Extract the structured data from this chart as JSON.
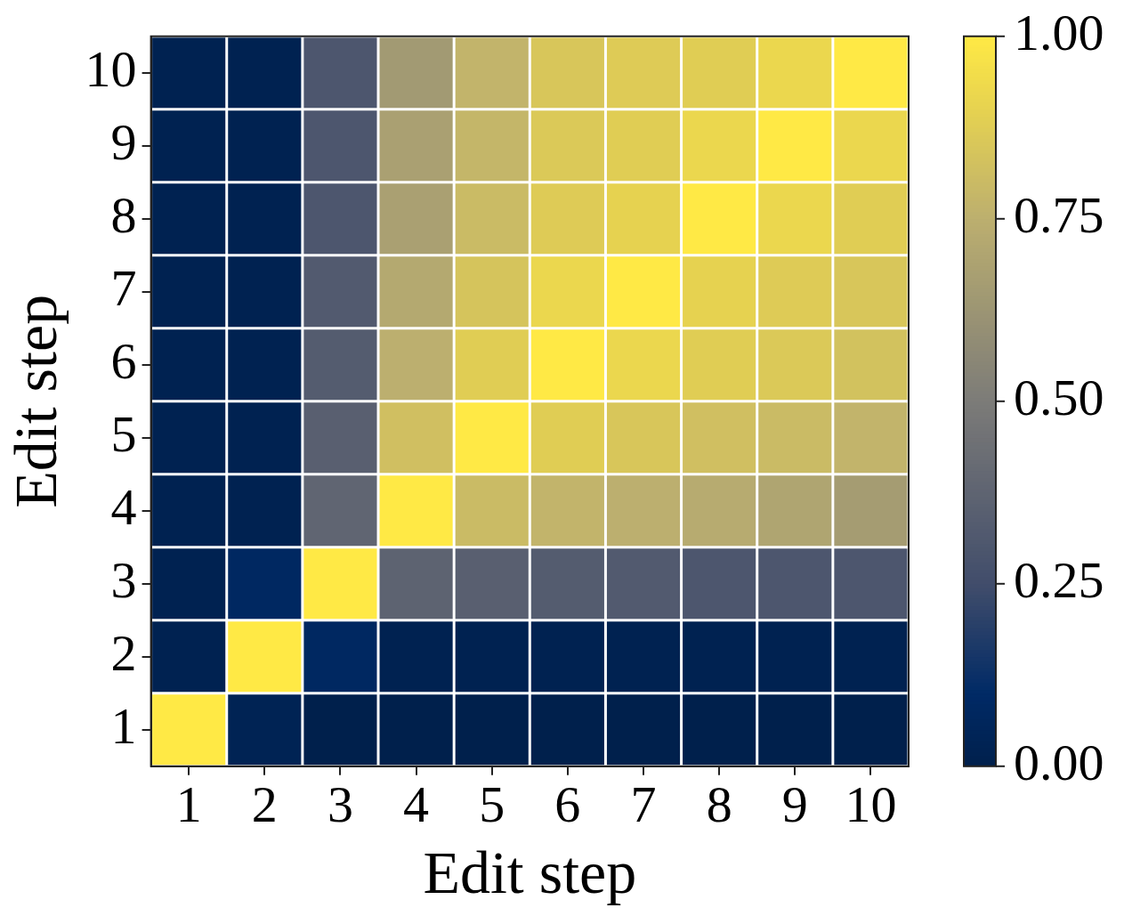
{
  "chart_data": {
    "type": "heatmap",
    "xlabel": "Edit step",
    "ylabel": "Edit step",
    "clim": [
      0,
      1
    ],
    "cticks": [
      {
        "value": 0,
        "label": "0.00"
      },
      {
        "value": 0.25,
        "label": "0.25"
      },
      {
        "value": 0.5,
        "label": "0.50"
      },
      {
        "value": 0.75,
        "label": "0.75"
      },
      {
        "value": 1,
        "label": "1.00"
      }
    ],
    "categories": [
      "1",
      "2",
      "3",
      "4",
      "5",
      "6",
      "7",
      "8",
      "9",
      "10"
    ],
    "y_categories": [
      "10",
      "9",
      "8",
      "7",
      "6",
      "5",
      "4",
      "3",
      "2",
      "1"
    ],
    "cells": [
      [
        0.02,
        0.02,
        0.3,
        0.65,
        0.77,
        0.85,
        0.87,
        0.88,
        0.92,
        1.0
      ],
      [
        0.02,
        0.02,
        0.3,
        0.68,
        0.78,
        0.86,
        0.88,
        0.92,
        1.0,
        0.92
      ],
      [
        0.02,
        0.02,
        0.3,
        0.68,
        0.8,
        0.87,
        0.9,
        1.0,
        0.92,
        0.88
      ],
      [
        0.02,
        0.02,
        0.32,
        0.72,
        0.84,
        0.92,
        1.0,
        0.9,
        0.87,
        0.85
      ],
      [
        0.02,
        0.02,
        0.33,
        0.75,
        0.88,
        1.0,
        0.92,
        0.88,
        0.86,
        0.83
      ],
      [
        0.02,
        0.02,
        0.35,
        0.82,
        1.0,
        0.88,
        0.85,
        0.82,
        0.8,
        0.77
      ],
      [
        0.02,
        0.02,
        0.38,
        1.0,
        0.8,
        0.77,
        0.75,
        0.73,
        0.7,
        0.66
      ],
      [
        0.02,
        0.08,
        1.0,
        0.37,
        0.35,
        0.33,
        0.32,
        0.3,
        0.3,
        0.3
      ],
      [
        0.02,
        1.0,
        0.08,
        0.02,
        0.02,
        0.02,
        0.02,
        0.02,
        0.02,
        0.02
      ],
      [
        1.0,
        0.03,
        0.0,
        0.0,
        0.0,
        0.0,
        0.0,
        0.0,
        0.0,
        0.0
      ]
    ]
  }
}
